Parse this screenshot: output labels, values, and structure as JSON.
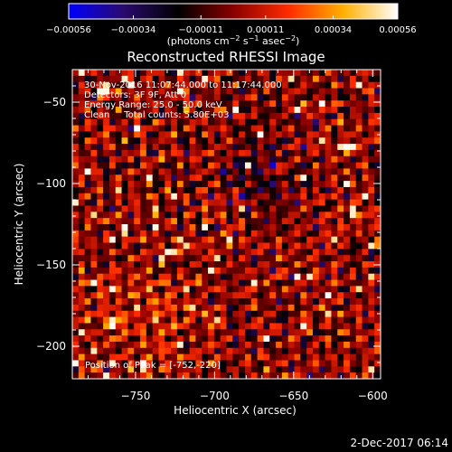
{
  "chart_data": {
    "type": "heatmap",
    "title": "Reconstructed RHESSI Image",
    "xlabel": "Heliocentric X (arcsec)",
    "ylabel": "Heliocentric Y (arcsec)",
    "xlim": [
      -790,
      -595
    ],
    "ylim": [
      -220,
      -30
    ],
    "x_ticks": [
      -750,
      -700,
      -650,
      -600
    ],
    "x_tick_labels": [
      "−750",
      "−700",
      "−650",
      "−600"
    ],
    "y_ticks": [
      -50,
      -100,
      -150,
      -200
    ],
    "y_tick_labels": [
      "−50",
      "−100",
      "−150",
      "−200"
    ],
    "colorbar": {
      "range": [
        -0.00056,
        0.00056
      ],
      "ticks": [
        -0.00056,
        -0.00034,
        -0.00011,
        0.00011,
        0.00034,
        0.00056
      ],
      "tick_labels": [
        "−0.00056",
        "−0.00034",
        "−0.00011",
        "0.00011",
        "0.00034",
        "0.00056"
      ],
      "label_main": "(photons cm",
      "label_exp1": "−2",
      "label_mid": " s",
      "label_exp2": "−1",
      "label_mid2": " asec",
      "label_exp3": "−2",
      "label_end": ")",
      "stops": [
        "#0000ff",
        "#2a0a6e",
        "#000000",
        "#8a0000",
        "#ff2a00",
        "#ffb000",
        "#ffffff"
      ]
    },
    "annotations": [
      "30-Nov-2016 11:07:44.000 to 11:17:44.000",
      "Detectors: 3F 9F, Att 0",
      "Energy Range: 25.0 - 50.0 keV",
      "Clean     Total counts: 5.80E+03"
    ],
    "peak_annotation": "Position of Peak = [-752,-220]",
    "grid": false
  },
  "footer": {
    "date": "2-Dec-2017 06:14"
  }
}
